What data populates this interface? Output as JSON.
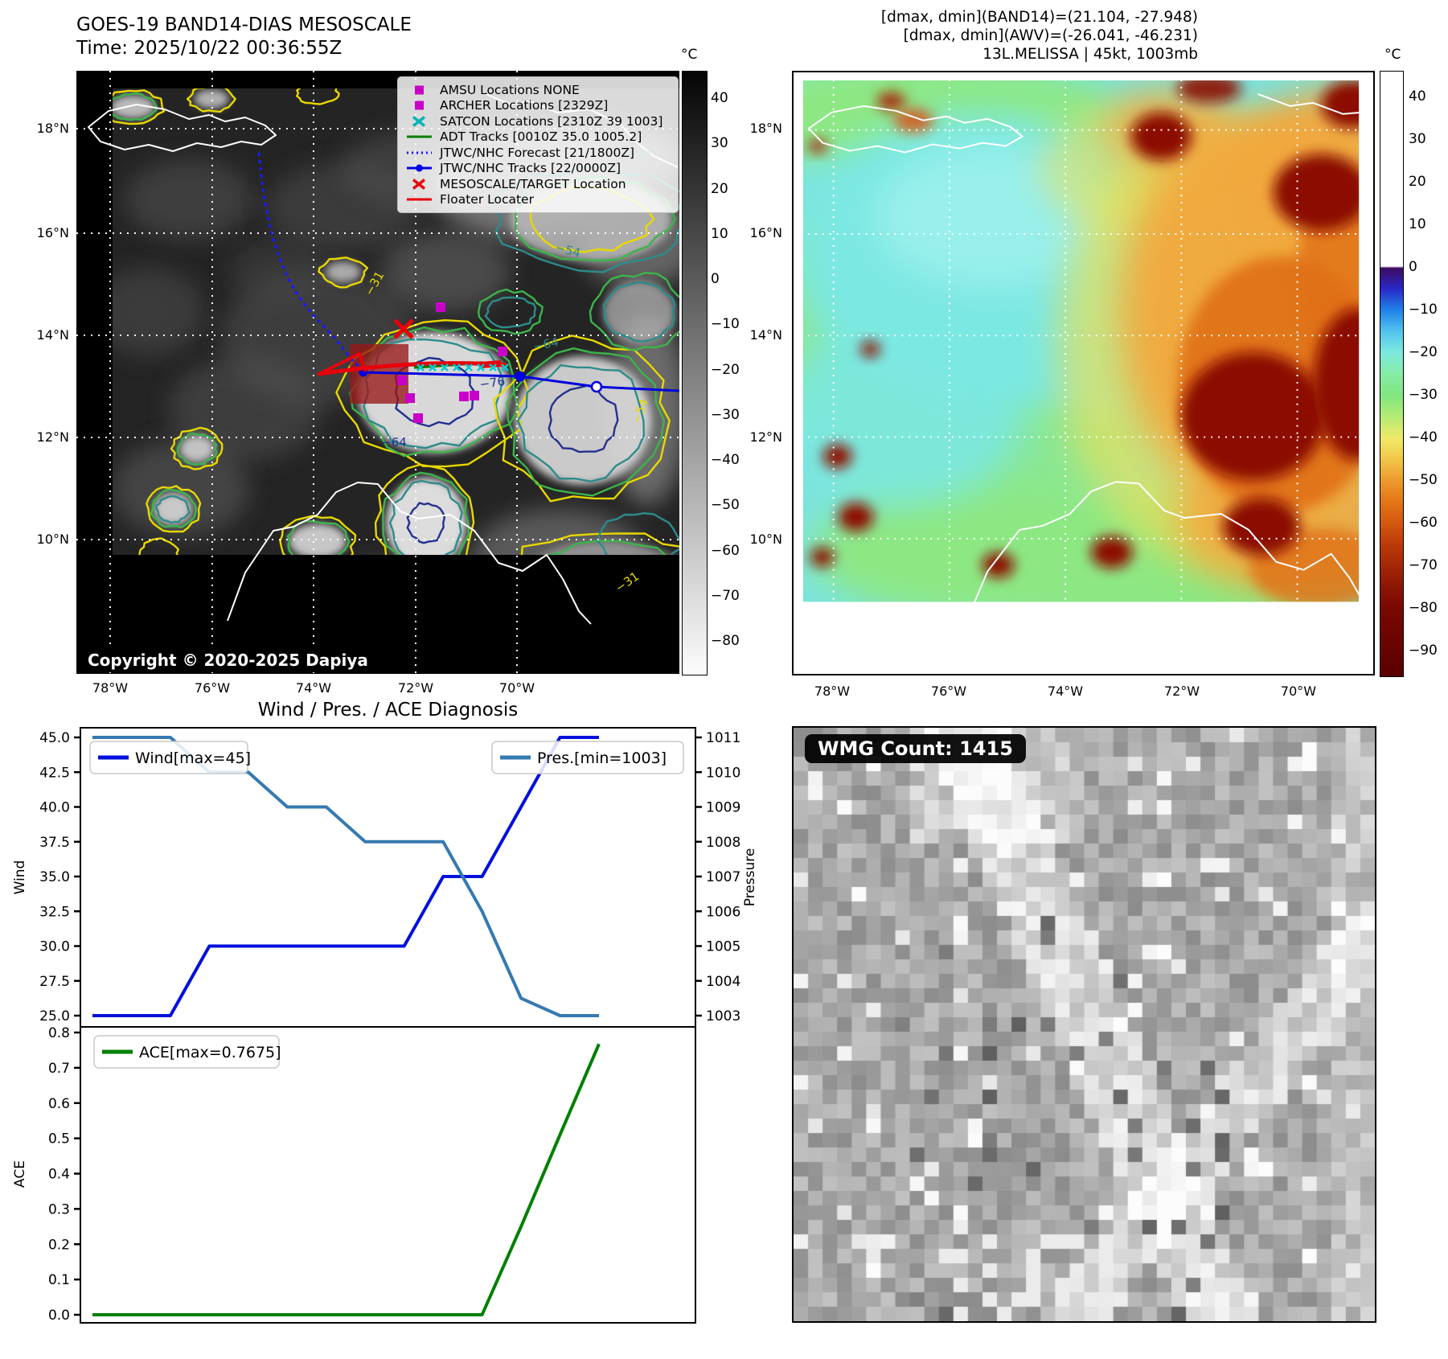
{
  "panel_band14": {
    "title": "GOES-19 BAND14-DIAS MESOSCALE",
    "time": "Time: 2025/10/22 00:36:55Z",
    "copyright": "Copyright © 2020-2025 Dapiya",
    "colorbar": {
      "unit": "°C",
      "ticks": [
        "40",
        "30",
        "20",
        "10",
        "0",
        "−10",
        "−20",
        "−30",
        "−40",
        "−50",
        "−60",
        "−70",
        "−80"
      ]
    },
    "lat_ticks": [
      "18°N",
      "16°N",
      "14°N",
      "12°N",
      "10°N"
    ],
    "lon_ticks": [
      "78°W",
      "76°W",
      "74°W",
      "72°W",
      "70°W"
    ],
    "legend": [
      {
        "label": "AMSU Locations NONE",
        "marker": "square",
        "color": "#c800c8"
      },
      {
        "label": "ARCHER Locations [2329Z]",
        "marker": "square",
        "color": "#c800c8"
      },
      {
        "label": "SATCON Locations [2310Z 39 1003]",
        "marker": "x",
        "color": "#00b4b4"
      },
      {
        "label": "ADT Tracks [0010Z 35.0 1005.2]",
        "marker": "line",
        "color": "#007f00"
      },
      {
        "label": "JTWC/NHC Forecast [21/1800Z]",
        "marker": "dotted",
        "color": "#1414ff"
      },
      {
        "label": "JTWC/NHC Tracks [22/0000Z]",
        "marker": "line-dot",
        "color": "#0000e6"
      },
      {
        "label": "MESOSCALE/TARGET Location",
        "marker": "x",
        "color": "#e8000b"
      },
      {
        "label": "Floater Locater",
        "marker": "line",
        "color": "#e8000b"
      }
    ],
    "contour_labels": [
      "−31",
      "−54",
      "−64",
      "−76"
    ]
  },
  "panel_awv": {
    "stats": [
      "[dmax, dmin](BAND14)=(21.104, -27.948)",
      "[dmax, dmin](AWV)=(-26.041, -46.231)",
      "13L.MELISSA | 45kt, 1003mb"
    ],
    "colorbar": {
      "unit": "°C",
      "ticks": [
        "40",
        "30",
        "20",
        "10",
        "0",
        "−10",
        "−20",
        "−30",
        "−40",
        "−50",
        "−60",
        "−70",
        "−80",
        "−90"
      ]
    },
    "lat_ticks": [
      "18°N",
      "16°N",
      "14°N",
      "12°N",
      "10°N"
    ],
    "lon_ticks": [
      "78°W",
      "76°W",
      "74°W",
      "72°W",
      "70°W"
    ]
  },
  "diagnosis": {
    "title": "Wind / Pres. / ACE Diagnosis"
  },
  "chart_data": [
    {
      "type": "line",
      "title": "Wind / Pres. / ACE Diagnosis",
      "x": [
        0,
        1,
        2,
        3,
        4,
        5,
        6,
        7,
        8,
        9,
        10,
        11,
        12,
        13
      ],
      "series": [
        {
          "name": "Wind[max=45]",
          "yaxis": "left",
          "color": "#0010dd",
          "values": [
            25,
            25,
            25,
            30,
            30,
            30,
            30,
            30,
            30,
            35,
            35,
            40,
            45,
            45
          ]
        },
        {
          "name": "Pres.[min=1003]",
          "yaxis": "right",
          "color": "#3579b1",
          "values": [
            1011,
            1011,
            1011,
            1010,
            1010,
            1009,
            1009,
            1008,
            1008,
            1008,
            1006,
            1003.5,
            1003,
            1003
          ]
        }
      ],
      "ylabel_left": "Wind",
      "yticks_left": [
        "45.0",
        "42.5",
        "40.0",
        "37.5",
        "35.0",
        "32.5",
        "30.0",
        "27.5",
        "25.0"
      ],
      "ylim_left": [
        25,
        45
      ],
      "ylabel_right": "Pressure",
      "yticks_right": [
        "1011",
        "1010",
        "1009",
        "1008",
        "1007",
        "1006",
        "1005",
        "1004",
        "1003"
      ],
      "ylim_right": [
        1003,
        1011
      ],
      "legend_position": "upper left and upper right",
      "grid": false
    },
    {
      "type": "line",
      "x": [
        0,
        1,
        2,
        3,
        4,
        5,
        6,
        7,
        8,
        9,
        10,
        11,
        12,
        13
      ],
      "series": [
        {
          "name": "ACE[max=0.7675]",
          "color": "#008000",
          "values": [
            0,
            0,
            0,
            0,
            0,
            0,
            0,
            0,
            0,
            0,
            0,
            0.25,
            0.51,
            0.7675
          ]
        }
      ],
      "ylabel": "ACE",
      "yticks": [
        "0.8",
        "0.7",
        "0.6",
        "0.5",
        "0.4",
        "0.3",
        "0.2",
        "0.1",
        "0.0"
      ],
      "ylim": [
        0,
        0.8
      ],
      "legend_position": "upper left",
      "grid": false
    }
  ],
  "panel_wmg": {
    "badge": "WMG Count: 1415"
  }
}
